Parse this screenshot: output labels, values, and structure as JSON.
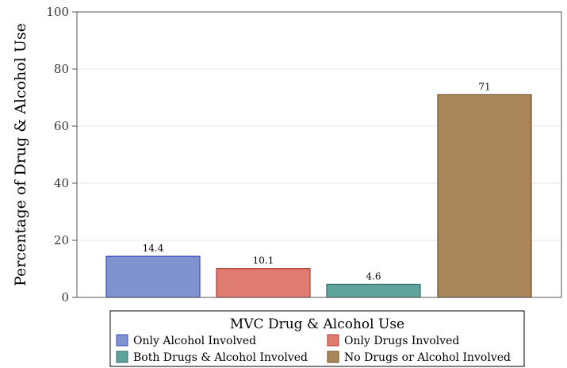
{
  "chart_data": {
    "type": "bar",
    "title": "",
    "xlabel": "",
    "ylabel": "Percentage of Drug & Alcohol Use",
    "ylim": [
      0,
      100
    ],
    "yticks": [
      0,
      20,
      40,
      60,
      80,
      100
    ],
    "grid": true,
    "categories": [
      "Only Alcohol Involved",
      "Only Drugs Involved",
      "Both Drugs & Alcohol Involved",
      "No Drugs or Alcohol Involved"
    ],
    "values": [
      14.4,
      10.1,
      4.6,
      71
    ],
    "value_labels": [
      "14.4",
      "10.1",
      "4.6",
      "71"
    ],
    "colors": [
      "#7f93cf",
      "#e07b6f",
      "#5fa39c",
      "#a9875b"
    ],
    "edge_colors": [
      "#3b4bc4",
      "#b0413a",
      "#2f6d67",
      "#6e5128"
    ],
    "legend": {
      "title": "MVC Drug & Alcohol Use",
      "placement": "bottom",
      "entries": [
        "Only Alcohol Involved",
        "Only Drugs Involved",
        "Both Drugs & Alcohol Involved",
        "No Drugs or Alcohol Involved"
      ]
    }
  }
}
